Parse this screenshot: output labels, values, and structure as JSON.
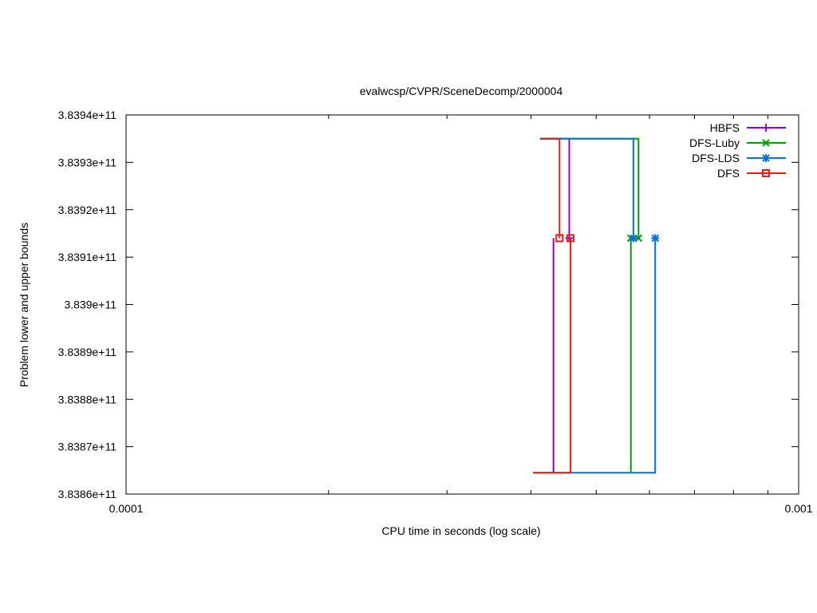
{
  "chart_data": {
    "type": "line",
    "title": "evalwcsp/CVPR/SceneDecomp/2000004",
    "xlabel": "CPU time in seconds (log scale)",
    "ylabel": "Problem lower and upper bounds",
    "xscale": "log",
    "xlim": [
      0.0001,
      0.001
    ],
    "ylim": [
      383860000000,
      383940000000
    ],
    "x_ticks": [
      {
        "value": 0.0001,
        "label": "0.0001"
      },
      {
        "value": 0.001,
        "label": "0.001"
      }
    ],
    "y_ticks": [
      {
        "value": 383860000000,
        "label": "3.8386e+11"
      },
      {
        "value": 383870000000,
        "label": "3.8387e+11"
      },
      {
        "value": 383880000000,
        "label": "3.8388e+11"
      },
      {
        "value": 383890000000,
        "label": "3.8389e+11"
      },
      {
        "value": 383900000000,
        "label": "3.839e+11"
      },
      {
        "value": 383910000000,
        "label": "3.8391e+11"
      },
      {
        "value": 383920000000,
        "label": "3.8392e+11"
      },
      {
        "value": 383930000000,
        "label": "3.8393e+11"
      },
      {
        "value": 383940000000,
        "label": "3.8394e+11"
      }
    ],
    "grid": false,
    "legend_position": "top-right",
    "series": [
      {
        "name": "HBFS",
        "color": "#9400d3",
        "marker": "plus",
        "upper": [
          [
            0.000413,
            383935000000
          ],
          [
            0.000456,
            383935000000
          ],
          [
            0.000456,
            383914000000
          ]
        ],
        "lower": [
          [
            0.000432,
            383864500000
          ],
          [
            0.000432,
            383914000000
          ]
        ],
        "marker_points": [
          [
            0.000456,
            383914000000
          ]
        ]
      },
      {
        "name": "DFS-Luby",
        "color": "#009e00",
        "marker": "x",
        "upper": [
          [
            0.000413,
            383935000000
          ],
          [
            0.000578,
            383935000000
          ],
          [
            0.000578,
            383914000000
          ]
        ],
        "lower": [
          [
            0.000563,
            383864500000
          ],
          [
            0.000563,
            383914000000
          ]
        ],
        "marker_points": [
          [
            0.000578,
            383914000000
          ],
          [
            0.000563,
            383914000000
          ]
        ]
      },
      {
        "name": "DFS-LDS",
        "color": "#0072e6",
        "marker": "star",
        "upper": [
          [
            0.000413,
            383935000000
          ],
          [
            0.000568,
            383935000000
          ],
          [
            0.000568,
            383914000000
          ]
        ],
        "lower": [
          [
            0.000403,
            383864500000
          ],
          [
            0.000612,
            383864500000
          ],
          [
            0.000612,
            383914000000
          ]
        ],
        "marker_points": [
          [
            0.000568,
            383914000000
          ],
          [
            0.000612,
            383914000000
          ]
        ]
      },
      {
        "name": "DFS",
        "color": "#e51e10",
        "marker": "square",
        "upper": [
          [
            0.000413,
            383935000000
          ],
          [
            0.000441,
            383935000000
          ],
          [
            0.000441,
            383914000000
          ]
        ],
        "lower": [
          [
            0.000403,
            383864500000
          ],
          [
            0.000458,
            383864500000
          ],
          [
            0.000458,
            383914000000
          ]
        ],
        "marker_points": [
          [
            0.000441,
            383914000000
          ],
          [
            0.000458,
            383914000000
          ]
        ]
      }
    ]
  }
}
